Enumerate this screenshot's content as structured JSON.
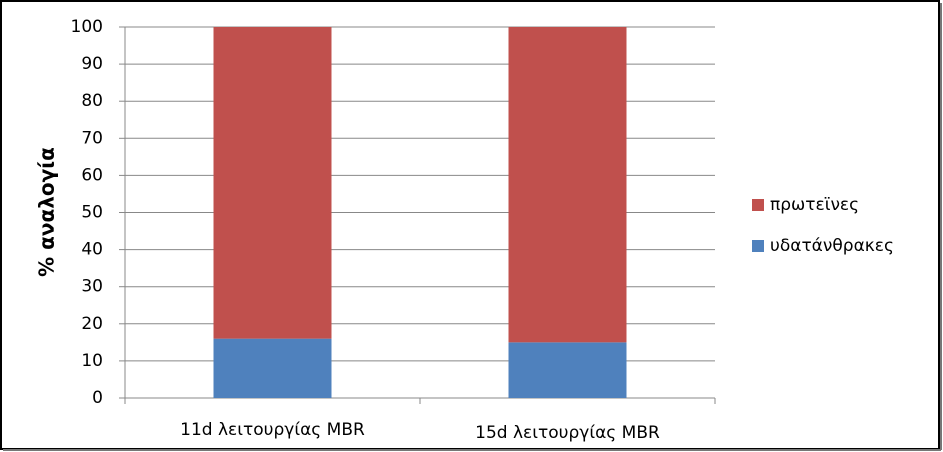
{
  "chart_data": {
    "type": "stacked-bar",
    "y_label": "% αναλογία",
    "categories": [
      "11d λειτουργίας MBR",
      "15d λειτουργίας MBR"
    ],
    "series": [
      {
        "name": "υδατάνθρακες",
        "color": "#4f81bd",
        "values": [
          16,
          15
        ]
      },
      {
        "name": "πρωτεϊνες",
        "color": "#c0504d",
        "values": [
          84,
          85
        ]
      }
    ],
    "ylim": [
      0,
      100
    ],
    "yticks": [
      0,
      10,
      20,
      30,
      40,
      50,
      60,
      70,
      80,
      90,
      100
    ],
    "grid": true,
    "legend": "right"
  }
}
